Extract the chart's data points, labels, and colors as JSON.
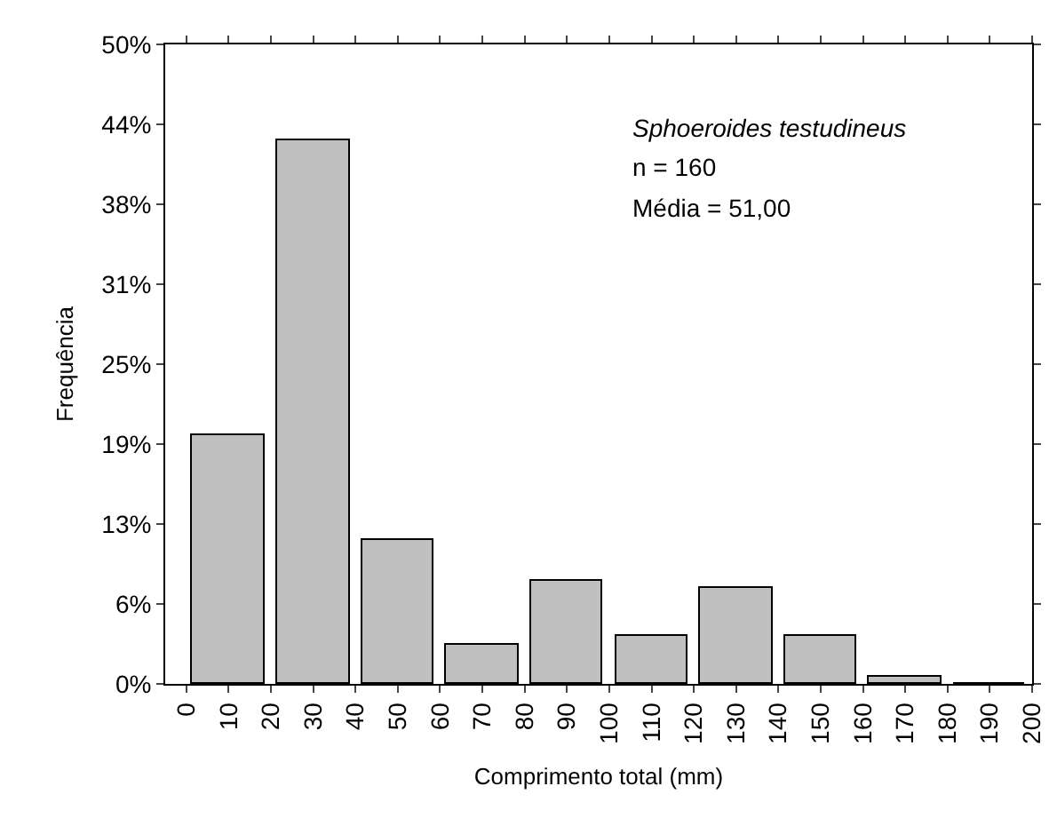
{
  "chart_data": {
    "type": "histogram",
    "xlabel": "Comprimento total (mm)",
    "ylabel": "Frequência",
    "bins": [
      0,
      20,
      40,
      60,
      80,
      100,
      120,
      140,
      160,
      180,
      200
    ],
    "values": [
      19.4,
      42.5,
      11.3,
      3.1,
      8.1,
      3.8,
      7.5,
      3.8,
      0.6,
      0
    ],
    "color": "#c0c0c0",
    "xlim": [
      -5,
      200
    ],
    "xticks": [
      0,
      10,
      20,
      30,
      40,
      50,
      60,
      70,
      80,
      90,
      100,
      110,
      120,
      130,
      140,
      150,
      160,
      170,
      180,
      190,
      200
    ],
    "ylim": [
      0,
      50
    ],
    "yticks": [
      {
        "value": 0,
        "label": "0%"
      },
      {
        "value": 6.25,
        "label": "6%"
      },
      {
        "value": 12.5,
        "label": "13%"
      },
      {
        "value": 18.75,
        "label": "19%"
      },
      {
        "value": 25,
        "label": "25%"
      },
      {
        "value": 31.25,
        "label": "31%"
      },
      {
        "value": 37.5,
        "label": "38%"
      },
      {
        "value": 43.75,
        "label": "44%"
      },
      {
        "value": 50,
        "label": "50%"
      }
    ],
    "annotations": [
      "Sphoeroides testudineus",
      "n = 160",
      "Média = 51,00"
    ],
    "legend": false
  }
}
